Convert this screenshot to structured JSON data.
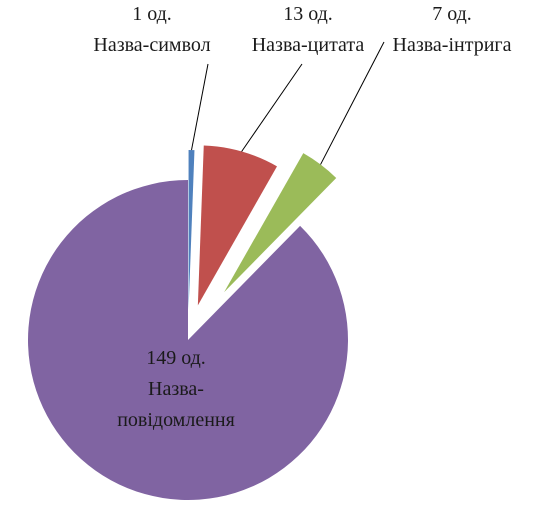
{
  "chart_data": {
    "type": "pie",
    "exploded": true,
    "title": "",
    "slices": [
      {
        "value": 1,
        "count_label": "1 од.",
        "name_lines": [
          "Назва-символ"
        ],
        "color": "#4f81bd"
      },
      {
        "value": 13,
        "count_label": "13 од.",
        "name_lines": [
          "Назва-цитата"
        ],
        "color": "#c0504d"
      },
      {
        "value": 7,
        "count_label": "7 од.",
        "name_lines": [
          "Назва-інтрига"
        ],
        "color": "#9bbb59"
      },
      {
        "value": 149,
        "count_label": "149 од.",
        "name_lines": [
          "Назва-",
          "повідомлення"
        ],
        "color": "#8064a2"
      }
    ]
  }
}
